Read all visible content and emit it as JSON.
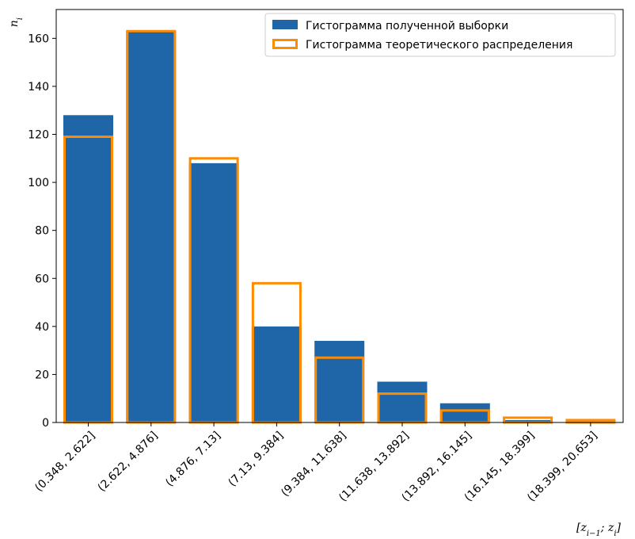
{
  "chart_data": {
    "type": "bar",
    "categories": [
      "(0.348, 2.622]",
      "(2.622, 4.876]",
      "(4.876, 7.13]",
      "(7.13, 9.384]",
      "(9.384, 11.638]",
      "(11.638, 13.892]",
      "(13.892, 16.145]",
      "(16.145, 18.399]",
      "(18.399, 20.653]"
    ],
    "series": [
      {
        "name": "Гистограмма полученной выборки",
        "values": [
          128,
          163,
          108,
          40,
          34,
          17,
          8,
          1,
          0
        ],
        "style": "filled",
        "color": "#1f66a8"
      },
      {
        "name": "Гистограмма теоретического распределения",
        "values": [
          119,
          163,
          110,
          58,
          27,
          12,
          5,
          2,
          1
        ],
        "style": "outline",
        "color": "#ff8c00"
      }
    ],
    "title": "",
    "xlabel": "[z_{i−1}; z_i]",
    "ylabel": "n_i",
    "ylim": [
      0,
      172
    ],
    "yticks": [
      0,
      20,
      40,
      60,
      80,
      100,
      120,
      140,
      160
    ],
    "legend_position": "top-right",
    "grid": false
  }
}
